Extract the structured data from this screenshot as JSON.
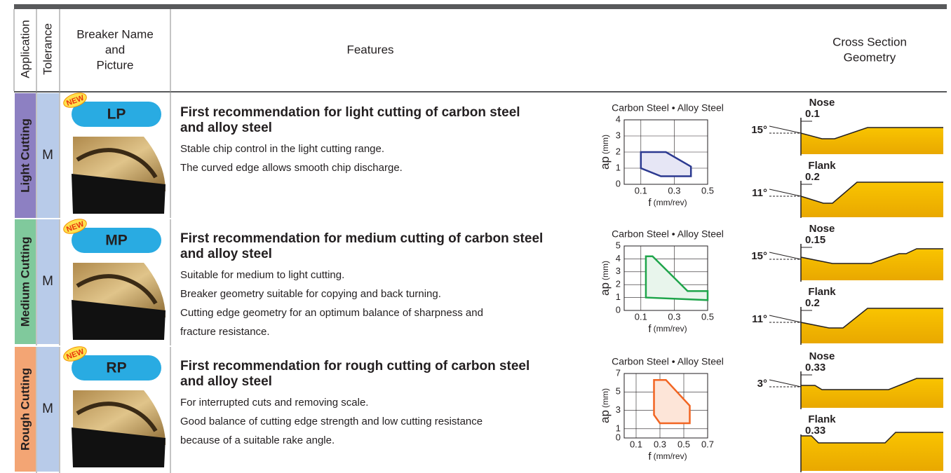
{
  "header": {
    "application": "Application",
    "tolerance": "Tolerance",
    "breaker": [
      "Breaker Name",
      "and",
      "Picture"
    ],
    "features": "Features",
    "cross_section": [
      "Cross Section",
      "Geometry"
    ]
  },
  "rows": [
    {
      "application": "Light Cutting",
      "tolerance": "M",
      "badge": "NEW",
      "breaker": "LP",
      "title_lines": [
        "First recommendation for light cutting of carbon steel",
        "and alloy steel"
      ],
      "features": [
        "Stable chip control in the light cutting range.",
        "The curved edge allows smooth chip discharge."
      ],
      "chart": {
        "title": "Carbon Steel • Alloy Steel",
        "ylabel": "ap",
        "yunit": "(mm)",
        "xlabel": "f",
        "xunit": "(mm/rev)",
        "xlim": [
          0,
          0.5
        ],
        "ylim": [
          0,
          4
        ],
        "xticks": [
          0.1,
          0.3,
          0.5
        ],
        "yticks": [
          0,
          1,
          2,
          3,
          4
        ],
        "color": "#2b3990",
        "fill": "#e6e6f5",
        "x": [
          0.1,
          0.25,
          0.4,
          0.4,
          0.22,
          0.1
        ],
        "y": [
          2,
          2,
          1.1,
          0.5,
          0.5,
          1
        ]
      },
      "nose": {
        "label": "Nose",
        "dim": "0.1",
        "angle": "15°"
      },
      "flank": {
        "label": "Flank",
        "dim": "0.2",
        "angle": "11°"
      }
    },
    {
      "application": "Medium Cutting",
      "tolerance": "M",
      "badge": "NEW",
      "breaker": "MP",
      "title_lines": [
        "First recommendation for medium cutting of carbon steel",
        "and alloy steel"
      ],
      "features": [
        "Suitable for medium to light cutting.",
        "Breaker geometry suitable for copying and back turning.",
        "Cutting edge geometry for an optimum balance of sharpness and",
        "fracture resistance."
      ],
      "chart": {
        "title": "Carbon Steel • Alloy Steel",
        "ylabel": "ap",
        "yunit": "(mm)",
        "xlabel": "f",
        "xunit": "(mm/rev)",
        "xlim": [
          0,
          0.5
        ],
        "ylim": [
          0,
          5
        ],
        "xticks": [
          0.1,
          0.3,
          0.5
        ],
        "yticks": [
          0,
          1,
          2,
          3,
          4,
          5
        ],
        "color": "#1fa54b",
        "fill": "#e8f5ec",
        "x": [
          0.13,
          0.17,
          0.38,
          0.5,
          0.5,
          0.13
        ],
        "y": [
          4.2,
          4.2,
          1.5,
          1.5,
          0.8,
          1
        ]
      },
      "nose": {
        "label": "Nose",
        "dim": "0.15",
        "angle": "15°"
      },
      "flank": {
        "label": "Flank",
        "dim": "0.2",
        "angle": "11°"
      }
    },
    {
      "application": "Rough Cutting",
      "tolerance": "M",
      "badge": "NEW",
      "breaker": "RP",
      "title_lines": [
        "First recommendation for rough cutting of carbon steel",
        "and alloy steel"
      ],
      "features": [
        "For interrupted cuts and removing scale.",
        "Good balance of cutting edge strength and low cutting resistance",
        "because of a suitable rake angle."
      ],
      "chart": {
        "title": "Carbon Steel • Alloy Steel",
        "ylabel": "ap",
        "yunit": "(mm)",
        "xlabel": "f",
        "xunit": "(mm/rev)",
        "xlim": [
          0,
          0.7
        ],
        "ylim": [
          0,
          7
        ],
        "xticks": [
          0.1,
          0.3,
          0.5,
          0.7
        ],
        "yticks": [
          0,
          1,
          3,
          5,
          7
        ],
        "color": "#f26522",
        "fill": "#fde5d8",
        "x": [
          0.25,
          0.35,
          0.55,
          0.55,
          0.3,
          0.25
        ],
        "y": [
          6.3,
          6.3,
          3.5,
          1.6,
          1.6,
          2.5
        ]
      },
      "nose": {
        "label": "Nose",
        "dim": "0.33",
        "angle": "3°"
      },
      "flank": {
        "label": "Flank",
        "dim": "0.33",
        "angle": ""
      }
    }
  ]
}
